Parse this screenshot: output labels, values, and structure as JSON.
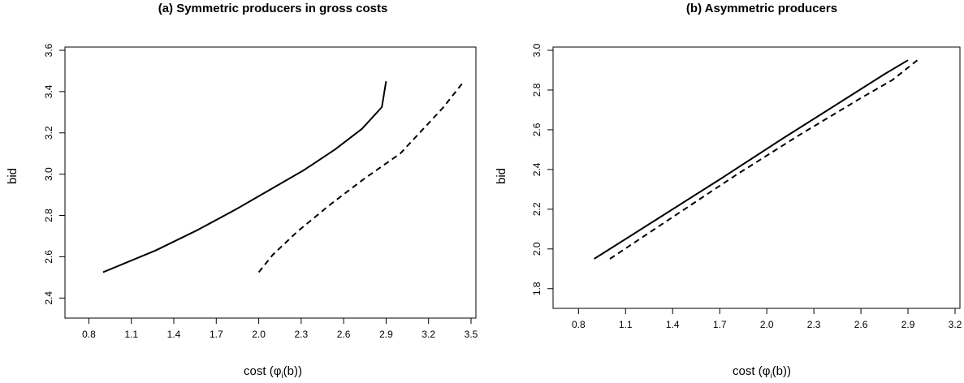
{
  "chart_data": [
    {
      "type": "line",
      "title": "(a) Symmetric producers in gross costs",
      "xlabel": "cost",
      "ylabel": "bid",
      "xlim": [
        0.7,
        3.5
      ],
      "ylim": [
        2.35,
        3.6
      ],
      "xticks": [
        "0.8",
        "1.1",
        "1.4",
        "1.7",
        "2.0",
        "2.3",
        "2.6",
        "2.9",
        "3.2",
        "3.5"
      ],
      "yticks": [
        "2.4",
        "2.6",
        "2.8",
        "3.0",
        "3.2",
        "3.4",
        "3.6"
      ],
      "series": [
        {
          "style": "solid",
          "x": [
            0.9,
            1.27,
            1.57,
            1.84,
            2.08,
            2.32,
            2.54,
            2.73,
            2.87,
            2.9
          ],
          "y": [
            2.525,
            2.63,
            2.73,
            2.83,
            2.925,
            3.02,
            3.12,
            3.22,
            3.325,
            3.45
          ]
        },
        {
          "style": "dashed",
          "x": [
            2.0,
            2.1,
            2.27,
            2.5,
            2.75,
            3.0,
            3.3,
            3.45
          ],
          "y": [
            2.525,
            2.61,
            2.72,
            2.85,
            2.98,
            3.1,
            3.32,
            3.45
          ]
        }
      ]
    },
    {
      "type": "line",
      "title": "(b) Asymmetric producers",
      "xlabel": "cost",
      "ylabel": "bid",
      "xlim": [
        0.7,
        3.2
      ],
      "ylim": [
        1.75,
        3.0
      ],
      "xticks": [
        "0.8",
        "1.1",
        "1.4",
        "1.7",
        "2.0",
        "2.3",
        "2.6",
        "2.9",
        "3.2"
      ],
      "yticks": [
        "1.8",
        "2.0",
        "2.2",
        "2.4",
        "2.6",
        "2.8",
        "3.0"
      ],
      "series": [
        {
          "style": "solid",
          "x": [
            0.9,
            1.3,
            1.7,
            2.1,
            2.5,
            2.75,
            2.9
          ],
          "y": [
            1.95,
            2.15,
            2.35,
            2.555,
            2.755,
            2.88,
            2.95
          ]
        },
        {
          "style": "dashed",
          "x": [
            1.0,
            1.4,
            1.8,
            2.2,
            2.6,
            2.8,
            2.96
          ],
          "y": [
            1.95,
            2.16,
            2.37,
            2.57,
            2.76,
            2.85,
            2.95
          ]
        }
      ]
    }
  ]
}
